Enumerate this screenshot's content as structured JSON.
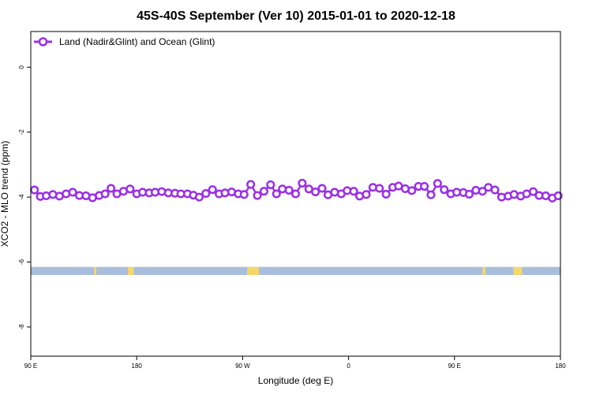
{
  "chart_data": {
    "type": "line",
    "title": "45S-40S September (Ver 10)   2015-01-01 to 2020-12-18",
    "xlabel": "Longitude (deg E)",
    "ylabel": "XCO2 - MLO trend (ppm)",
    "xlim": [
      90,
      450
    ],
    "ylim": [
      -8.9,
      1.1
    ],
    "x_tick_values": [
      90,
      162,
      234,
      306,
      378,
      450
    ],
    "x_tick_labels": [
      "90 E",
      "180",
      "90 W",
      "0",
      "90 E",
      "180"
    ],
    "y_ticks": [
      0,
      -2,
      -4,
      -6,
      -8
    ],
    "y_tick_labels": [
      "0",
      "-2",
      "-4",
      "-6",
      "-8"
    ],
    "legend": {
      "position": "top-left",
      "entries": [
        "Land (Nadir&Glint) and Ocean (Glint)"
      ]
    },
    "series": [
      {
        "name": "Land (Nadir&Glint) and Ocean (Glint)",
        "color": "#9b30e6",
        "x": [
          92.5,
          96.5,
          100.5,
          105.0,
          109.5,
          114.0,
          118.5,
          123.0,
          127.5,
          132.0,
          136.5,
          140.5,
          144.5,
          148.5,
          153.0,
          157.5,
          162.0,
          166.0,
          170.5,
          174.5,
          179.0,
          183.5,
          188.0,
          192.0,
          196.5,
          200.5,
          204.5,
          209.0,
          213.5,
          218.0,
          222.0,
          226.5,
          231.0,
          235.0,
          239.5,
          244.0,
          248.5,
          253.0,
          257.0,
          261.0,
          265.5,
          270.0,
          274.5,
          279.0,
          283.5,
          288.0,
          292.0,
          296.5,
          301.0,
          305.0,
          309.5,
          313.5,
          318.0,
          322.5,
          327.0,
          331.5,
          336.0,
          340.0,
          344.5,
          349.0,
          353.5,
          357.5,
          362.0,
          366.5,
          371.0,
          375.5,
          379.5,
          384.0,
          388.0,
          392.5,
          397.0,
          401.0,
          405.5,
          410.0,
          414.5,
          418.5,
          423.0,
          427.0,
          431.5,
          435.5,
          440.0,
          444.5,
          448.5
        ],
        "y": [
          -3.78,
          -3.98,
          -3.96,
          -3.92,
          -3.97,
          -3.9,
          -3.85,
          -3.95,
          -3.96,
          -4.02,
          -3.95,
          -3.9,
          -3.73,
          -3.9,
          -3.82,
          -3.75,
          -3.9,
          -3.85,
          -3.87,
          -3.85,
          -3.83,
          -3.87,
          -3.88,
          -3.9,
          -3.9,
          -3.94,
          -4.0,
          -3.89,
          -3.77,
          -3.9,
          -3.87,
          -3.84,
          -3.9,
          -3.92,
          -3.61,
          -3.95,
          -3.82,
          -3.62,
          -3.9,
          -3.75,
          -3.79,
          -3.9,
          -3.57,
          -3.75,
          -3.84,
          -3.73,
          -3.93,
          -3.85,
          -3.9,
          -3.8,
          -3.82,
          -3.97,
          -3.92,
          -3.7,
          -3.73,
          -3.91,
          -3.7,
          -3.66,
          -3.74,
          -3.8,
          -3.67,
          -3.67,
          -3.93,
          -3.58,
          -3.77,
          -3.9,
          -3.85,
          -3.86,
          -3.91,
          -3.79,
          -3.82,
          -3.7,
          -3.78,
          -4.0,
          -3.97,
          -3.92,
          -3.97,
          -3.9,
          -3.83,
          -3.95,
          -3.96,
          -4.03,
          -3.96
        ]
      }
    ],
    "land_ocean_bar": {
      "y_range": [
        -6.4,
        -6.15
      ],
      "ocean_color": "#a8bedc",
      "land_color": "#f5d76e",
      "land_x_ranges": [
        [
          133,
          134.5
        ],
        [
          156,
          160
        ],
        [
          237,
          245
        ],
        [
          397,
          399
        ],
        [
          418,
          424
        ]
      ]
    }
  }
}
